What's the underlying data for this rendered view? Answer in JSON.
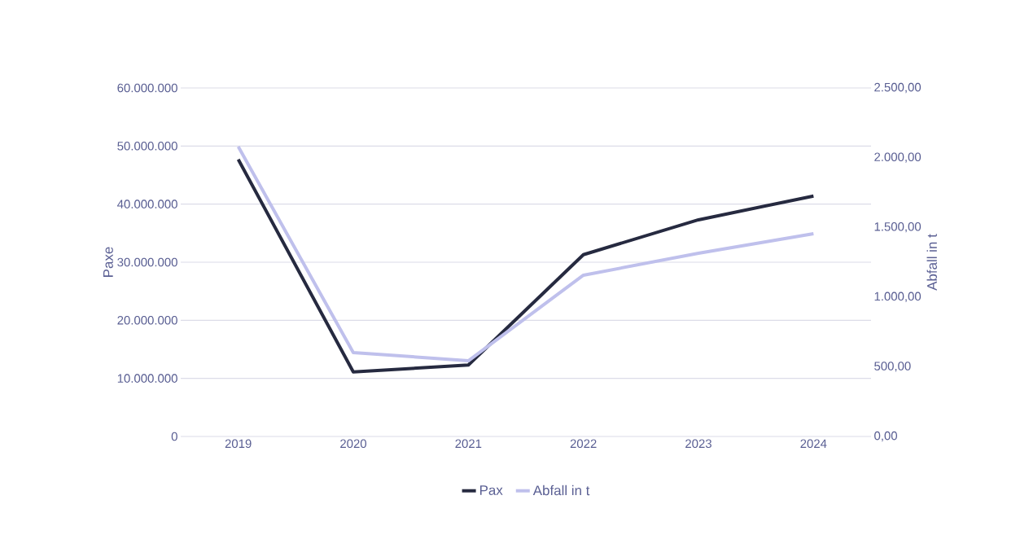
{
  "chart_data": {
    "type": "line",
    "categories": [
      "2019",
      "2020",
      "2021",
      "2022",
      "2023",
      "2024"
    ],
    "ylabel": "Paxe",
    "y2label": "Abfall in t",
    "series": [
      {
        "name": "Pax",
        "color": "#262a40",
        "values": [
          47700000,
          11100000,
          12300000,
          31300000,
          37300000,
          41400000
        ]
      },
      {
        "name": "Abfall in t",
        "color": "#bfc0ec",
        "axis": "y2",
        "values": [
          2079,
          602,
          543,
          1157,
          1314,
          1454
        ]
      }
    ],
    "ylim": [
      0,
      60000000
    ],
    "yticks": [
      {
        "value": 0,
        "label": "0"
      },
      {
        "value": 10000000,
        "label": "10.000.000"
      },
      {
        "value": 20000000,
        "label": "20.000.000"
      },
      {
        "value": 30000000,
        "label": "30.000.000"
      },
      {
        "value": 40000000,
        "label": "40.000.000"
      },
      {
        "value": 50000000,
        "label": "50.000.000"
      },
      {
        "value": 60000000,
        "label": "60.000.000"
      }
    ],
    "y2lim": [
      0,
      2500
    ],
    "y2ticks": [
      {
        "value": 0,
        "label": "0,00"
      },
      {
        "value": 500,
        "label": "500,00"
      },
      {
        "value": 1000,
        "label": "1.000,00"
      },
      {
        "value": 1500,
        "label": "1.500,00"
      },
      {
        "value": 2000,
        "label": "2.000,00"
      },
      {
        "value": 2500,
        "label": "2.500,00"
      }
    ],
    "grid": "y",
    "legend": "bottom",
    "marker": "none",
    "line_style": "solid"
  }
}
